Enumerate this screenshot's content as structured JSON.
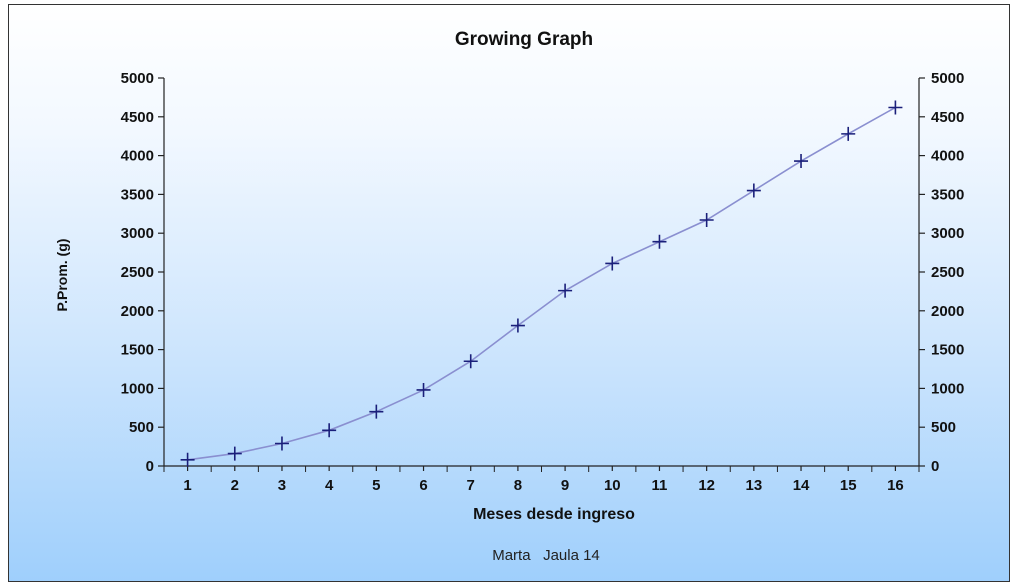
{
  "chart_data": {
    "type": "line",
    "title": "Growing Graph",
    "xlabel": "Meses desde ingreso",
    "ylabel": "P.Prom. (g)",
    "footer": "Marta   Jaula 14",
    "x": [
      1,
      2,
      3,
      4,
      5,
      6,
      7,
      8,
      9,
      10,
      11,
      12,
      13,
      14,
      15,
      16
    ],
    "series": [
      {
        "values": [
          80,
          160,
          290,
          460,
          700,
          980,
          1350,
          1810,
          2260,
          2610,
          2890,
          3170,
          3550,
          3930,
          4280,
          4620
        ]
      }
    ],
    "ylim": [
      0,
      5000
    ],
    "yticks": [
      0,
      500,
      1000,
      1500,
      2000,
      2500,
      3000,
      3500,
      4000,
      4500,
      5000
    ],
    "right_axis_mirrored": true,
    "grid": false,
    "marker": "plus",
    "line_color": "#8a8fd0",
    "marker_color": "#1a1f7a"
  }
}
